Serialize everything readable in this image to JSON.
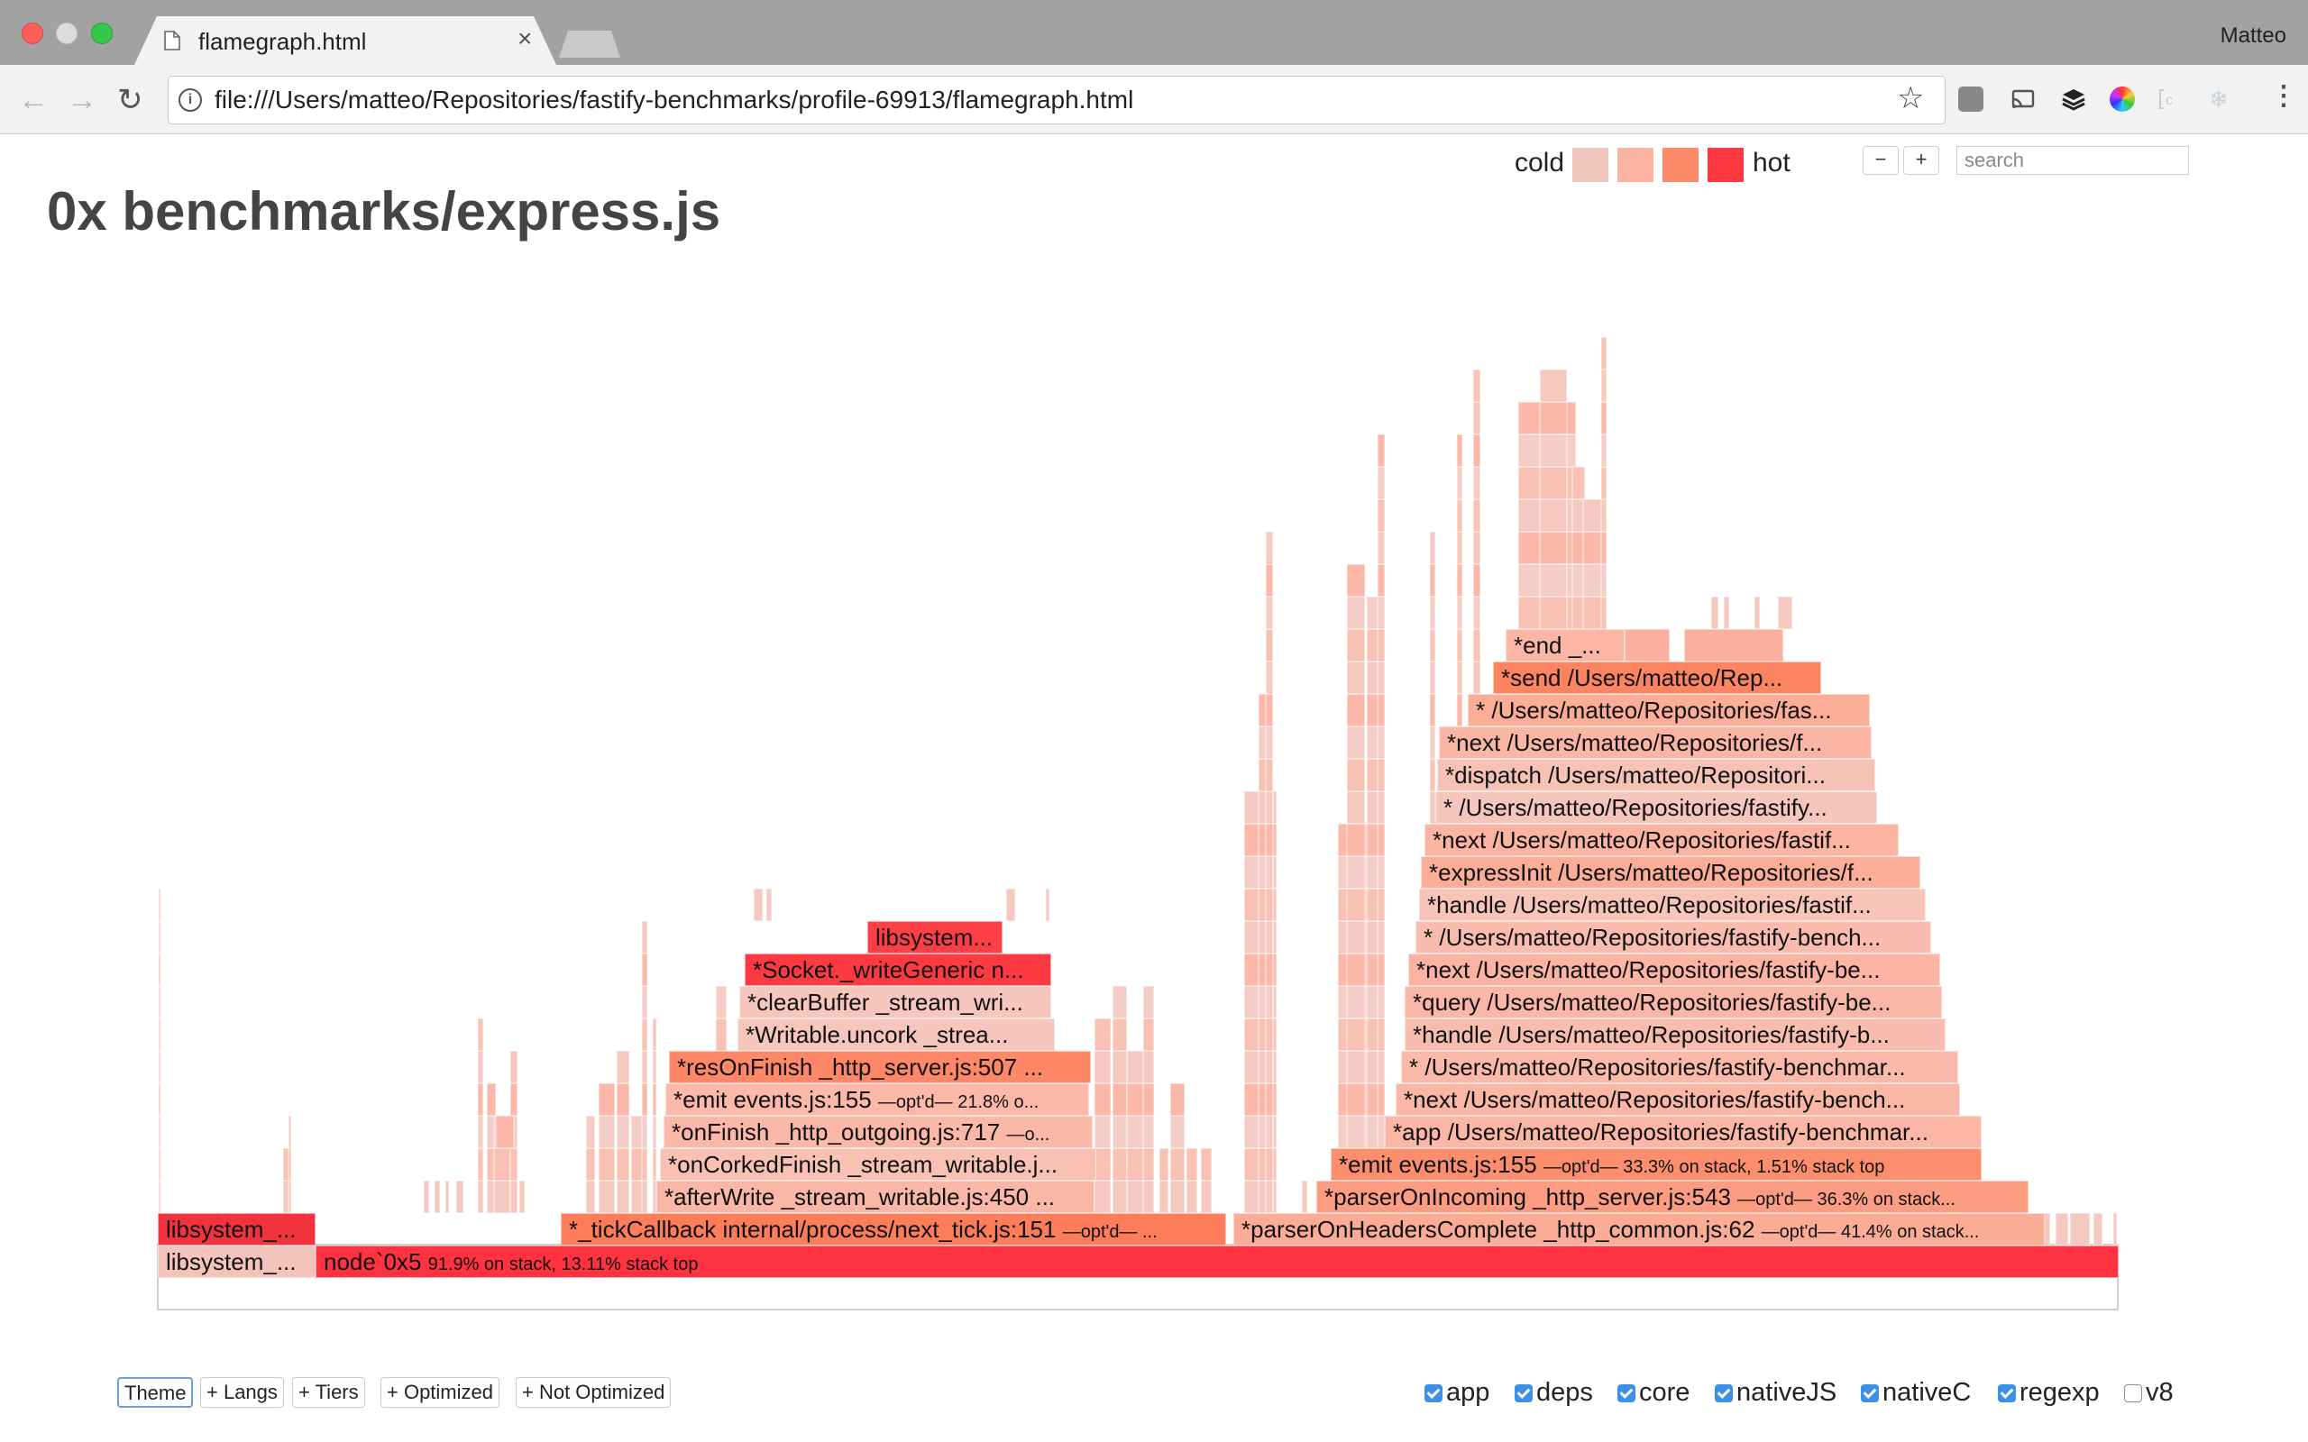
{
  "browser": {
    "tab_title": "flamegraph.html",
    "profile": "Matteo",
    "url": "file:///Users/matteo/Repositories/fastify-benchmarks/profile-69913/flamegraph.html"
  },
  "page": {
    "title": "0x benchmarks/express.js",
    "legend": {
      "cold_label": "cold",
      "hot_label": "hot",
      "colors": [
        "#f2c7be",
        "#fbb3a1",
        "#fd8a68",
        "#fe3841"
      ]
    },
    "zoom_out_label": "−",
    "zoom_in_label": "+",
    "search_placeholder": "search"
  },
  "frames": [
    {
      "label": "node`0x5",
      "detail": "91.9% on stack, 13.11% stack top",
      "color": "#ff3241"
    },
    {
      "label": "libsystem_...",
      "detail": "",
      "color": "#f4c4bb"
    },
    {
      "label": "libsystem_...",
      "detail": "",
      "color": "#f2333d"
    },
    {
      "label": "*_tickCallback internal/process/next_tick.js:151",
      "detail": "—opt'd— ...",
      "color": "#fd7d5a"
    },
    {
      "label": "*parserOnHeadersComplete _http_common.js:62",
      "detail": "—opt'd— 41.4% on stack...",
      "color": "#fbac97"
    },
    {
      "label": "*parserOnIncoming _http_server.js:543",
      "detail": "—opt'd— 36.3% on stack...",
      "color": "#fc9c83"
    },
    {
      "label": "*emit events.js:155",
      "detail": "—opt'd— 33.3% on stack, 1.51% stack top",
      "color": "#fc8d6d"
    },
    {
      "label": "*app /Users/matteo/Repositories/fastify-benchmar...",
      "detail": "",
      "color": "#fcb6a5"
    },
    {
      "label": "*next /Users/matteo/Repositories/fastify-bench...",
      "detail": "",
      "color": "#fab7a6"
    },
    {
      "label": "* /Users/matteo/Repositories/fastify-benchmar...",
      "detail": "",
      "color": "#fbb9a9"
    },
    {
      "label": "*handle /Users/matteo/Repositories/fastify-b...",
      "detail": "",
      "color": "#f9bdb0"
    },
    {
      "label": "*query /Users/matteo/Repositories/fastify-be...",
      "detail": "",
      "color": "#fab6a6"
    },
    {
      "label": "*next /Users/matteo/Repositories/fastify-be...",
      "detail": "",
      "color": "#fbb4a3"
    },
    {
      "label": "* /Users/matteo/Repositories/fastify-bench...",
      "detail": "",
      "color": "#f9bcae"
    },
    {
      "label": "*handle /Users/matteo/Repositories/fastif...",
      "detail": "",
      "color": "#f8c4b8"
    },
    {
      "label": "*expressInit /Users/matteo/Repositories/f...",
      "detail": "",
      "color": "#fbad97"
    },
    {
      "label": "*next /Users/matteo/Repositories/fastif...",
      "detail": "",
      "color": "#fbb3a2"
    },
    {
      "label": "* /Users/matteo/Repositories/fastify...",
      "detail": "",
      "color": "#f5c6bb"
    },
    {
      "label": "*dispatch /Users/matteo/Repositori...",
      "detail": "",
      "color": "#f6c2b6"
    },
    {
      "label": "*next /Users/matteo/Repositories/f...",
      "detail": "",
      "color": "#fab5a5"
    },
    {
      "label": "* /Users/matteo/Repositories/fas...",
      "detail": "",
      "color": "#fbad98"
    },
    {
      "label": "*send /Users/matteo/Rep...",
      "detail": "",
      "color": "#fd8460"
    },
    {
      "label": "*end _...",
      "detail": "",
      "color": "#fbb6a6"
    },
    {
      "label": "*afterWrite _stream_writable.js:450 ...",
      "detail": "",
      "color": "#fab6a7"
    },
    {
      "label": "*onCorkedFinish _stream_writable.j...",
      "detail": "",
      "color": "#f9c0b4"
    },
    {
      "label": "*onFinish _http_outgoing.js:717",
      "detail": "—o...",
      "color": "#fbb8a9"
    },
    {
      "label": "*emit events.js:155",
      "detail": "—opt'd— 21.8% o...",
      "color": "#fcb9a9"
    },
    {
      "label": "*resOnFinish _http_server.js:507 ...",
      "detail": "",
      "color": "#fd8766"
    },
    {
      "label": "*Writable.uncork _strea...",
      "detail": "",
      "color": "#f6c5bc"
    },
    {
      "label": "*clearBuffer _stream_wri...",
      "detail": "",
      "color": "#f7c6bc"
    },
    {
      "label": "*Socket._writeGeneric n...",
      "detail": "",
      "color": "#fd3a42"
    },
    {
      "label": "libsystem...",
      "detail": "",
      "color": "#fc3f45"
    }
  ],
  "bottom": {
    "buttons": [
      "Theme",
      "+ Langs",
      "+ Tiers",
      "+ Optimized",
      "+ Not Optimized"
    ],
    "checkboxes": [
      {
        "label": "app",
        "checked": true
      },
      {
        "label": "deps",
        "checked": true
      },
      {
        "label": "core",
        "checked": true
      },
      {
        "label": "nativeJS",
        "checked": true
      },
      {
        "label": "nativeC",
        "checked": true
      },
      {
        "label": "regexp",
        "checked": true
      },
      {
        "label": "v8",
        "checked": false
      }
    ]
  }
}
